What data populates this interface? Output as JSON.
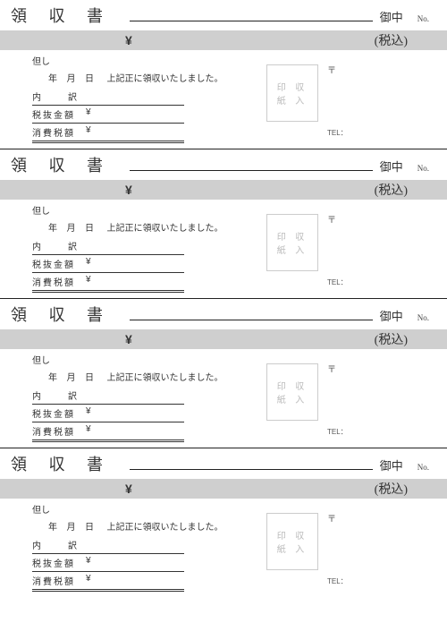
{
  "title": "領 収 書",
  "recipient_suffix": "御中",
  "number_label": "No.",
  "currency_symbol": "¥",
  "tax_inclusive_label": "(税込)",
  "proviso_label": "但し",
  "date_year": "年",
  "date_month": "月",
  "date_day": "日",
  "receipt_statement": "上記正に領収いたしました。",
  "breakdown_label": "内　訳",
  "excl_tax_label": "税抜金額",
  "consumption_tax_label": "消費税額",
  "stamp_line1": "印 収",
  "stamp_line2": "紙 入",
  "postal_mark": "〒",
  "tel_label": "TEL：",
  "colors": {
    "bar_bg": "#cfcfcf",
    "border": "#222222",
    "stamp_border": "#cccccc",
    "stamp_text": "#bbbbbb"
  },
  "receipt_count": 4
}
